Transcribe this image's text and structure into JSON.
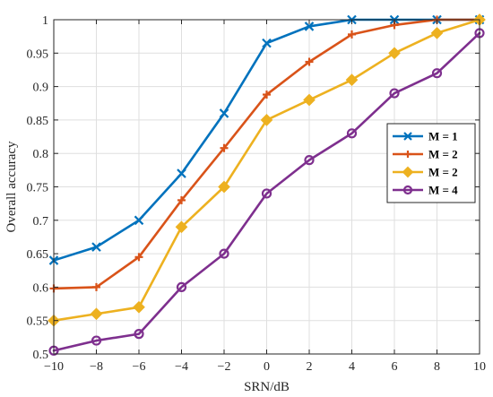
{
  "chart_data": {
    "type": "line",
    "title": "",
    "xlabel": "SRN/dB",
    "ylabel": "Overall accuracy",
    "xlim": [
      -10,
      10
    ],
    "ylim": [
      0.5,
      1
    ],
    "grid": true,
    "legend_position": "right",
    "x": [
      -10,
      -8,
      -6,
      -4,
      -2,
      0,
      2,
      4,
      6,
      8,
      10
    ],
    "x_tick_labels": [
      "−10",
      "−8",
      "−6",
      "−4",
      "−2",
      "0",
      "2",
      "4",
      "6",
      "8",
      "10"
    ],
    "y_ticks": [
      0.5,
      0.55,
      0.6,
      0.65,
      0.7,
      0.75,
      0.8,
      0.85,
      0.9,
      0.95,
      1
    ],
    "y_tick_labels": [
      "0.5",
      "0.55",
      "0.6",
      "0.65",
      "0.7",
      "0.75",
      "0.8",
      "0.85",
      "0.9",
      "0.95",
      "1"
    ],
    "series": [
      {
        "name": "M = 1",
        "color": "#0072BD",
        "marker": "x",
        "values": [
          0.64,
          0.66,
          0.7,
          0.77,
          0.86,
          0.965,
          0.99,
          1.0,
          1.0,
          1.0,
          1.0
        ]
      },
      {
        "name": "M = 2",
        "color": "#D95319",
        "marker": "plus",
        "values": [
          0.598,
          0.6,
          0.645,
          0.73,
          0.808,
          0.888,
          0.937,
          0.978,
          0.992,
          1.0,
          1.0
        ]
      },
      {
        "name": "M = 2",
        "color": "#EDB120",
        "marker": "diamond",
        "values": [
          0.55,
          0.56,
          0.57,
          0.69,
          0.75,
          0.85,
          0.88,
          0.91,
          0.95,
          0.98,
          1.0
        ]
      },
      {
        "name": "M = 4",
        "color": "#7E2F8E",
        "marker": "circle",
        "values": [
          0.505,
          0.52,
          0.53,
          0.6,
          0.65,
          0.74,
          0.79,
          0.83,
          0.89,
          0.92,
          0.98
        ]
      }
    ]
  }
}
